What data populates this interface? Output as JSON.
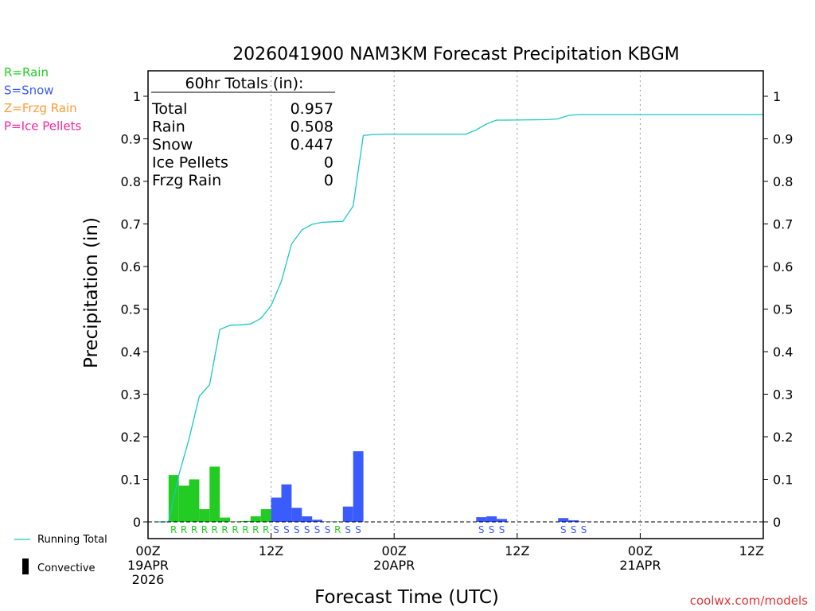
{
  "chart_data": {
    "type": "bar",
    "title": "2026041900 NAM3KM Forecast Precipitation KBGM",
    "xlabel": "Forecast Time (UTC)",
    "ylabel": "Precipitation (in)",
    "ylim": [
      0,
      1.05
    ],
    "xlim_hours": [
      0,
      60
    ],
    "y_ticks": [
      0,
      0.1,
      0.2,
      0.3,
      0.4,
      0.5,
      0.6,
      0.7,
      0.8,
      0.9,
      1
    ],
    "y_tick_labels": [
      "0",
      "0.1",
      "0.2",
      "0.3",
      "0.4",
      "0.5",
      "0.6",
      "0.7",
      "0.8",
      "0.9",
      "1"
    ],
    "x_ticks": [
      {
        "hour": 0,
        "lines": [
          "00Z",
          "19APR",
          "2026"
        ]
      },
      {
        "hour": 12,
        "lines": [
          "12Z"
        ]
      },
      {
        "hour": 24,
        "lines": [
          "00Z",
          "20APR"
        ]
      },
      {
        "hour": 36,
        "lines": [
          "12Z"
        ]
      },
      {
        "hour": 48,
        "lines": [
          "00Z",
          "21APR"
        ]
      },
      {
        "hour": 60,
        "lines": [
          "12Z"
        ]
      }
    ],
    "legend": {
      "type_keys": [
        {
          "label": "R=Rain",
          "color": "#22cc22"
        },
        {
          "label": "S=Snow",
          "color": "#3a5cff"
        },
        {
          "label": "Z=Frzg Rain",
          "color": "#ff9933"
        },
        {
          "label": "P=Ice Pellets",
          "color": "#ff2299"
        }
      ],
      "running_total_label": "Running Total",
      "convective_label": "Convective"
    },
    "totals": {
      "heading": "60hr Totals (in):",
      "rows": [
        {
          "label": "Total",
          "value": "0.957"
        },
        {
          "label": "Rain",
          "value": "0.508"
        },
        {
          "label": "Snow",
          "value": "0.447"
        },
        {
          "label": "Ice Pellets",
          "value": "0"
        },
        {
          "label": "Frzg Rain",
          "value": "0"
        }
      ]
    },
    "series": [
      {
        "name": "Hourly precipitation",
        "bars": [
          {
            "hour": 3,
            "value": 0.11,
            "ptype": "R"
          },
          {
            "hour": 4,
            "value": 0.085,
            "ptype": "R"
          },
          {
            "hour": 5,
            "value": 0.1,
            "ptype": "R"
          },
          {
            "hour": 6,
            "value": 0.03,
            "ptype": "R"
          },
          {
            "hour": 7,
            "value": 0.13,
            "ptype": "R"
          },
          {
            "hour": 8,
            "value": 0.01,
            "ptype": "R"
          },
          {
            "hour": 9,
            "value": 0.001,
            "ptype": "R"
          },
          {
            "hour": 10,
            "value": 0.002,
            "ptype": "R"
          },
          {
            "hour": 11,
            "value": 0.013,
            "ptype": "R"
          },
          {
            "hour": 12,
            "value": 0.03,
            "ptype": "R"
          },
          {
            "hour": 13,
            "value": 0.057,
            "ptype": "S"
          },
          {
            "hour": 14,
            "value": 0.088,
            "ptype": "S"
          },
          {
            "hour": 15,
            "value": 0.033,
            "ptype": "S"
          },
          {
            "hour": 16,
            "value": 0.013,
            "ptype": "S"
          },
          {
            "hour": 17,
            "value": 0.005,
            "ptype": "S"
          },
          {
            "hour": 18,
            "value": 0.001,
            "ptype": "S"
          },
          {
            "hour": 19,
            "value": 0.001,
            "ptype": "R"
          },
          {
            "hour": 20,
            "value": 0.036,
            "ptype": "S"
          },
          {
            "hour": 21,
            "value": 0.166,
            "ptype": "S"
          },
          {
            "hour": 33,
            "value": 0.011,
            "ptype": "S"
          },
          {
            "hour": 34,
            "value": 0.013,
            "ptype": "S"
          },
          {
            "hour": 35,
            "value": 0.007,
            "ptype": "S"
          },
          {
            "hour": 41,
            "value": 0.009,
            "ptype": "S"
          },
          {
            "hour": 42,
            "value": 0.004,
            "ptype": "S"
          },
          {
            "hour": 43,
            "value": 0.001,
            "ptype": "S"
          }
        ]
      },
      {
        "name": "Running Total",
        "points": [
          [
            1,
            0
          ],
          [
            2,
            0
          ],
          [
            3,
            0.11
          ],
          [
            4,
            0.195
          ],
          [
            5,
            0.295
          ],
          [
            6,
            0.322
          ],
          [
            7,
            0.452
          ],
          [
            8,
            0.462
          ],
          [
            9,
            0.463
          ],
          [
            10,
            0.465
          ],
          [
            11,
            0.478
          ],
          [
            12,
            0.508
          ],
          [
            13,
            0.565
          ],
          [
            14,
            0.653
          ],
          [
            15,
            0.686
          ],
          [
            16,
            0.699
          ],
          [
            17,
            0.704
          ],
          [
            18,
            0.705
          ],
          [
            19,
            0.706
          ],
          [
            20,
            0.742
          ],
          [
            21,
            0.908
          ],
          [
            22,
            0.91
          ],
          [
            23,
            0.911
          ],
          [
            24,
            0.911
          ],
          [
            30,
            0.911
          ],
          [
            31,
            0.911
          ],
          [
            32,
            0.921
          ],
          [
            33,
            0.935
          ],
          [
            34,
            0.944
          ],
          [
            35,
            0.944
          ],
          [
            39,
            0.945
          ],
          [
            40,
            0.947
          ],
          [
            41,
            0.955
          ],
          [
            42,
            0.957
          ],
          [
            60,
            0.957
          ]
        ]
      }
    ],
    "watermark": "coolwx.com/models"
  }
}
